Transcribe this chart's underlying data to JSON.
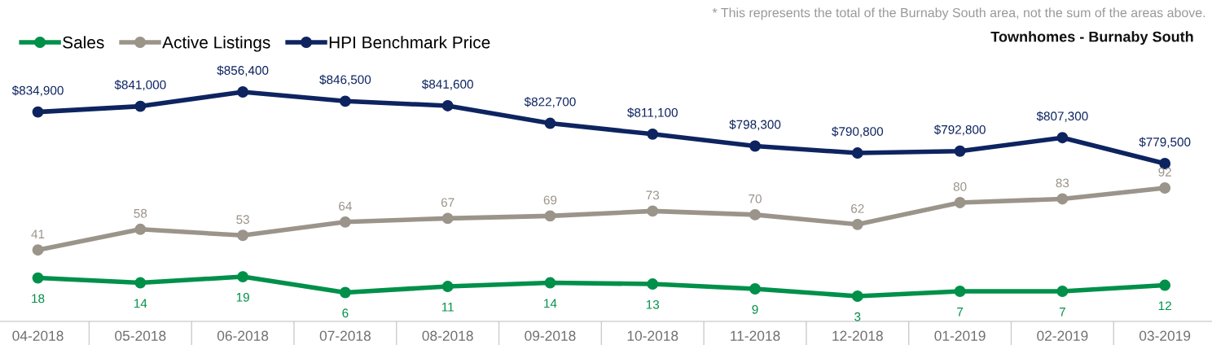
{
  "chart_data": [
    {
      "type": "line",
      "title": "Townhomes - Burnaby South",
      "annotations": [
        "* This represents the total of the Burnaby South area, not the sum of the areas above."
      ],
      "categories": [
        null,
        null,
        null,
        null,
        null,
        null,
        null,
        null,
        null,
        null,
        null,
        null
      ],
      "series": [
        {
          "name": "HPI Benchmark Price",
          "color": "#0d2460",
          "values": [
            834900,
            841000,
            856400,
            846500,
            841600,
            822700,
            811100,
            798300,
            790800,
            792800,
            807300,
            779500
          ],
          "value_labels": [
            "$834,900",
            "$841,000",
            "$856,400",
            "$846,500",
            "$841,600",
            "$822,700",
            "$811,100",
            "$798,300",
            "$790,800",
            "$792,800",
            "$807,300",
            "$779,500"
          ]
        }
      ],
      "tick_labels": false,
      "data_labels": true,
      "legend": "top left",
      "grid": false,
      "marker": "circle",
      "line_style": "solid"
    },
    {
      "type": "line",
      "categories": [
        "04-2018",
        "05-2018",
        "06-2018",
        "07-2018",
        "08-2018",
        "09-2018",
        "10-2018",
        "11-2018",
        "12-2018",
        "01-2019",
        "02-2019",
        "03-2019"
      ],
      "series": [
        {
          "name": "Sales",
          "color": "#00904a",
          "values": [
            18,
            14,
            19,
            6,
            11,
            14,
            13,
            9,
            3,
            7,
            7,
            12
          ]
        },
        {
          "name": "Active Listings",
          "color": "#9b948a",
          "values": [
            41,
            58,
            53,
            64,
            67,
            69,
            73,
            70,
            62,
            80,
            83,
            92
          ]
        }
      ],
      "tick_labels": "x",
      "data_labels": true,
      "legend": "top left",
      "grid": false,
      "marker": "circle",
      "line_style": "solid"
    }
  ]
}
